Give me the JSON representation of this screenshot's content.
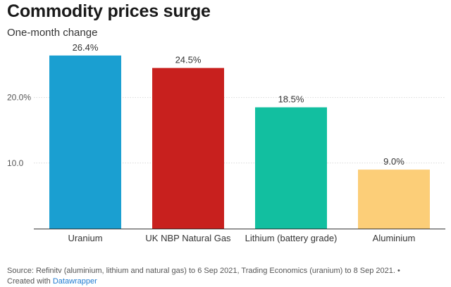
{
  "title": "Commodity prices surge",
  "subtitle": "One-month change",
  "footer": {
    "source": "Source: Refinitv (aluminium, lithium and natural gas) to 6 Sep 2021, Trading Economics (uranium) to 8 Sep 2021. •",
    "created_prefix": "Created with",
    "created_link": "Datawrapper"
  },
  "chart_data": {
    "type": "bar",
    "categories": [
      "Uranium",
      "UK NBP Natural Gas",
      "Lithium (battery grade)",
      "Aluminium"
    ],
    "values": [
      26.4,
      24.5,
      18.5,
      9.0
    ],
    "value_labels": [
      "26.4%",
      "24.5%",
      "18.5%",
      "9.0%"
    ],
    "colors": [
      "#1a9fd1",
      "#c8201e",
      "#12bfa0",
      "#fcce78"
    ],
    "yticks": [
      {
        "value": 10,
        "label": "10.0"
      },
      {
        "value": 20,
        "label": "20.0%"
      }
    ],
    "ylim": [
      0,
      28
    ],
    "grid": true
  }
}
